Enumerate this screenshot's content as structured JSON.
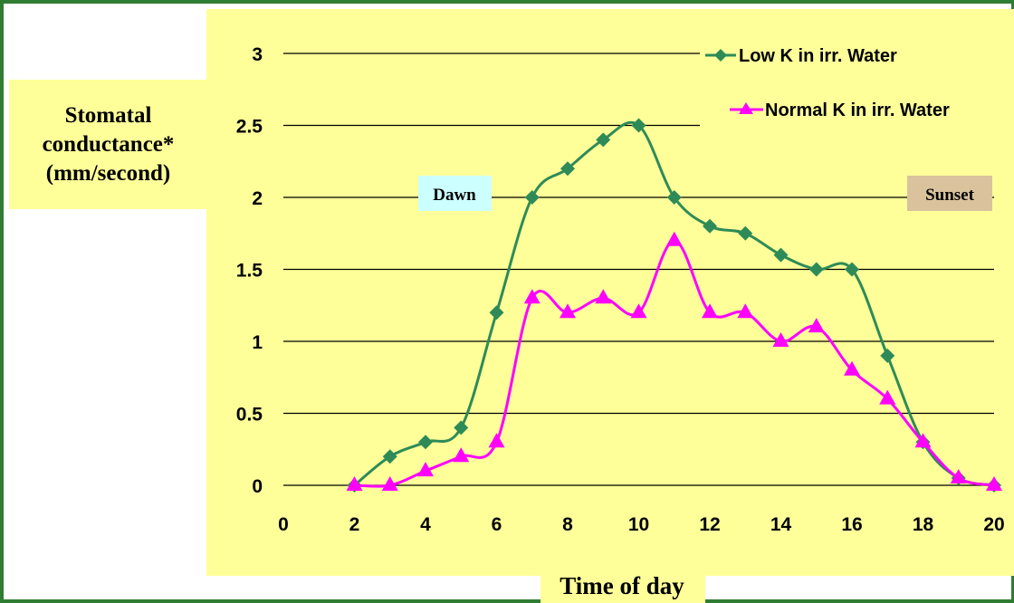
{
  "chart_data": {
    "type": "line",
    "title": "",
    "xlabel": "Time of day",
    "ylabel": "Stomatal conductance* (mm/second)",
    "ylabel_lines": [
      "Stomatal",
      "conductance*",
      "(mm/second)"
    ],
    "xlim": [
      0,
      20
    ],
    "ylim": [
      0,
      3
    ],
    "x_ticks": [
      0,
      2,
      4,
      6,
      8,
      10,
      12,
      14,
      16,
      18,
      20
    ],
    "y_ticks": [
      "0",
      "0.5",
      "1",
      "1.5",
      "2",
      "2.5",
      "3"
    ],
    "grid": "horizontal",
    "legend_position": "top-right",
    "series": [
      {
        "name": "Low K in irr. Water",
        "color": "#2e8b57",
        "marker": "diamond",
        "x": [
          2,
          3,
          4,
          5,
          6,
          7,
          8,
          9,
          10,
          11,
          12,
          13,
          14,
          15,
          16,
          17,
          18,
          19,
          20
        ],
        "y": [
          0,
          0.2,
          0.3,
          0.4,
          1.2,
          2.0,
          2.2,
          2.4,
          2.5,
          2.0,
          1.8,
          1.75,
          1.6,
          1.5,
          1.5,
          0.9,
          0.3,
          0.05,
          0
        ]
      },
      {
        "name": "Normal K in irr. Water",
        "color": "#ff00ff",
        "marker": "triangle",
        "x": [
          2,
          3,
          4,
          5,
          6,
          7,
          8,
          9,
          10,
          11,
          12,
          13,
          14,
          15,
          16,
          17,
          18,
          19,
          20
        ],
        "y": [
          0,
          0,
          0.1,
          0.2,
          0.3,
          1.3,
          1.2,
          1.3,
          1.2,
          1.7,
          1.2,
          1.2,
          1.0,
          1.1,
          0.8,
          0.6,
          0.3,
          0.05,
          0
        ]
      }
    ],
    "annotations": [
      {
        "text": "Dawn",
        "color": "#ccffff"
      },
      {
        "text": "Sunset",
        "color": "#d9c29c"
      }
    ]
  }
}
